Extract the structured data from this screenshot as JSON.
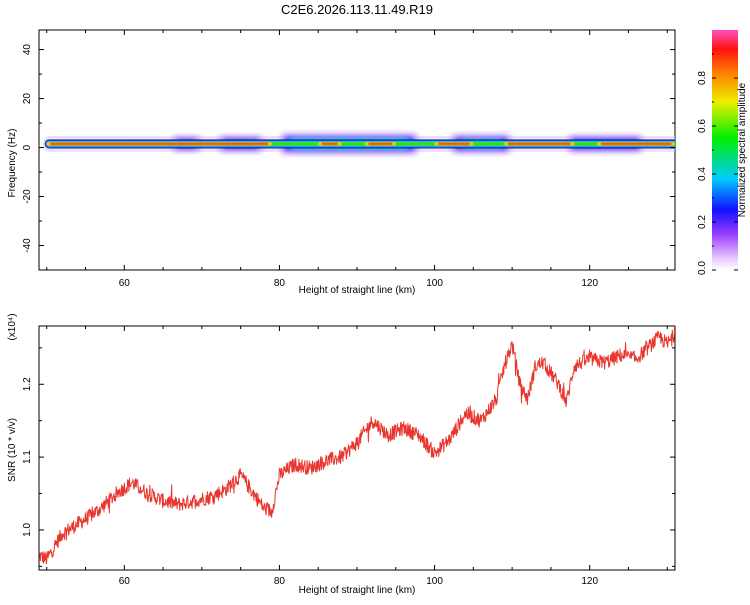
{
  "title": "C2E6.2026.113.11.49.R19",
  "chart_data": [
    {
      "type": "heatmap",
      "ylabel": "Frequency (Hz)",
      "xlabel": "Height of straight line (km)",
      "xlim": [
        49,
        131
      ],
      "ylim": [
        -50,
        48
      ],
      "xticks": [
        60,
        80,
        100,
        120
      ],
      "yticks": [
        40,
        20,
        0,
        -20,
        -40
      ],
      "band_center_hz": 1.5,
      "colorbar": {
        "label": "Normalized spectral amplitude",
        "range": [
          0,
          1
        ],
        "ticks": [
          "0.0",
          "0.2",
          "0.4",
          "0.6",
          "0.8"
        ]
      },
      "spread_regions": [
        {
          "x": [
            66,
            70
          ],
          "intensity": 0.25
        },
        {
          "x": [
            72,
            78
          ],
          "intensity": 0.3
        },
        {
          "x": [
            80,
            98
          ],
          "intensity": 0.55
        },
        {
          "x": [
            102,
            110
          ],
          "intensity": 0.45
        },
        {
          "x": [
            117,
            127
          ],
          "intensity": 0.35
        }
      ]
    },
    {
      "type": "line",
      "ylabel": "SNR (10 * v/v)",
      "xlabel": "Height of straight line (km)",
      "multiplier": "(x10⁴)",
      "xlim": [
        49,
        131
      ],
      "ylim": [
        0.945,
        1.28
      ],
      "xticks": [
        60,
        80,
        100,
        120
      ],
      "yticks": [
        "1.0",
        "1.1",
        "1.2"
      ],
      "series": [
        {
          "name": "SNR",
          "color": "#e8362e",
          "x": [
            49,
            50,
            52,
            55,
            57,
            59,
            61,
            63,
            65,
            67,
            69,
            71,
            73,
            75,
            76,
            78,
            79,
            80,
            82,
            84,
            86,
            88,
            90,
            92,
            94,
            96,
            98,
            100,
            102,
            104,
            106,
            108,
            109,
            110,
            111,
            112,
            113,
            114,
            116,
            117,
            118,
            120,
            122,
            124,
            126,
            128,
            129,
            130,
            131
          ],
          "y": [
            0.965,
            0.96,
            0.995,
            1.015,
            1.03,
            1.05,
            1.065,
            1.05,
            1.04,
            1.035,
            1.04,
            1.045,
            1.055,
            1.075,
            1.06,
            1.03,
            1.025,
            1.075,
            1.09,
            1.085,
            1.095,
            1.1,
            1.12,
            1.15,
            1.13,
            1.14,
            1.13,
            1.105,
            1.125,
            1.16,
            1.15,
            1.18,
            1.225,
            1.255,
            1.2,
            1.18,
            1.225,
            1.23,
            1.2,
            1.175,
            1.225,
            1.235,
            1.23,
            1.24,
            1.235,
            1.255,
            1.265,
            1.255,
            1.27
          ]
        }
      ]
    }
  ]
}
